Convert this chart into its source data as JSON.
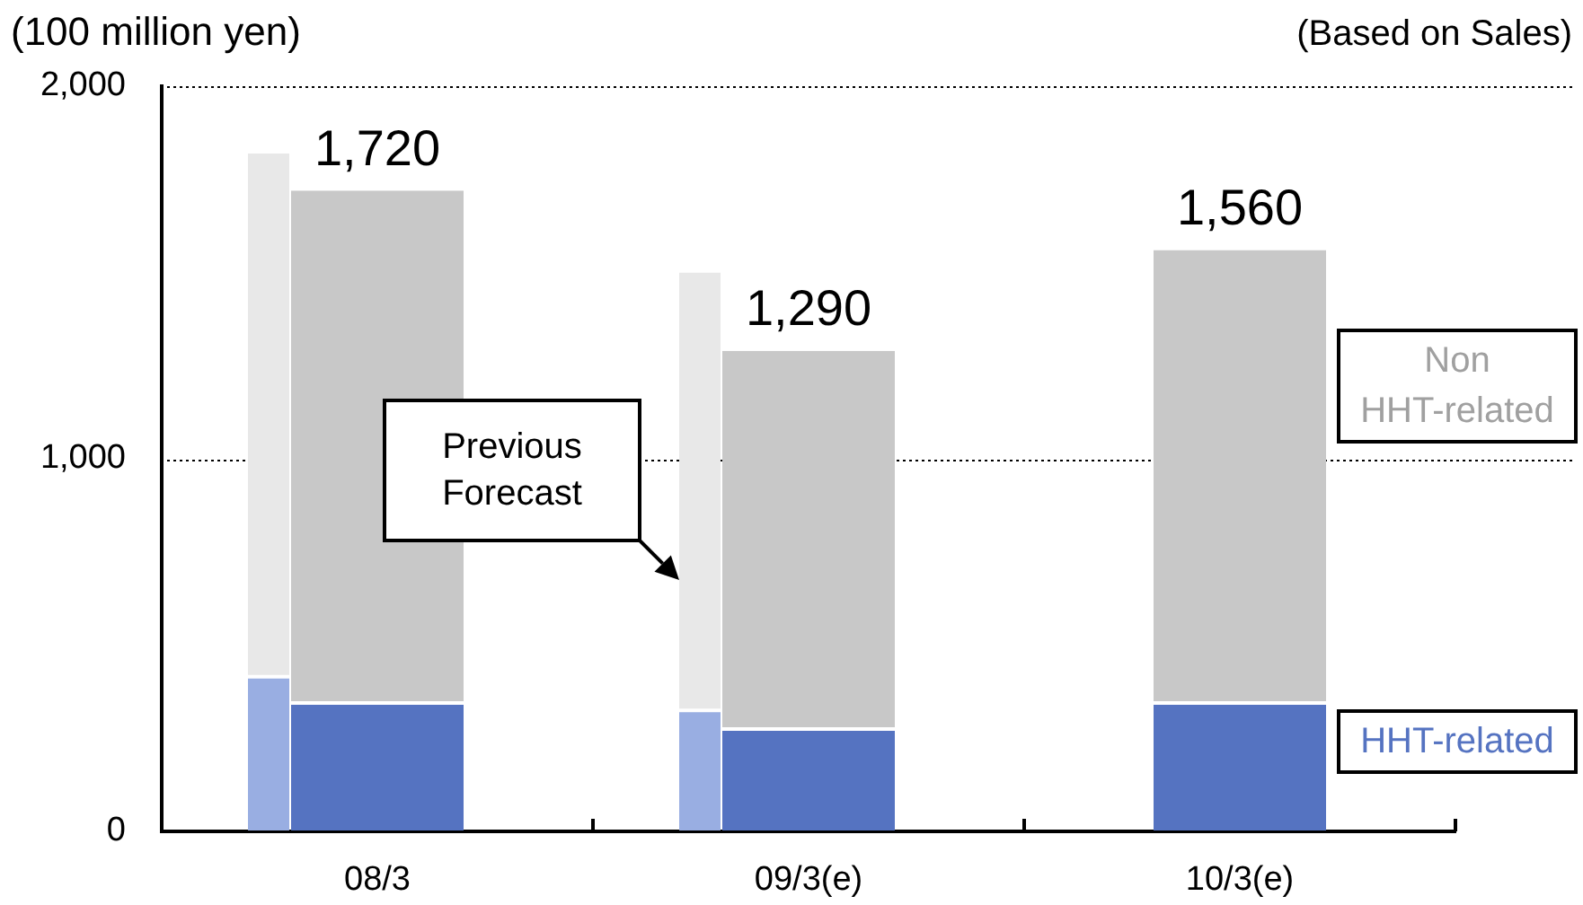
{
  "chart_data": {
    "type": "bar",
    "stacked": true,
    "ylabel": "(100 million yen)",
    "annotations": [
      "(Based on Sales)",
      "Previous Forecast"
    ],
    "categories": [
      null,
      "08/3",
      null,
      "09/3(e)",
      null,
      "10/3(e)"
    ],
    "series": [
      {
        "name": "HHT-related",
        "color": "#5573c1",
        "colors": [
          "#99aee2",
          "#5573c1",
          "#99aee2",
          "#5573c1",
          null,
          "#5573c1"
        ],
        "values": [
          410,
          340,
          320,
          270,
          null,
          340
        ]
      },
      {
        "name": "Non HHT-related",
        "color": "#c8c8c8",
        "colors": [
          "#e8e8e8",
          "#c8c8c8",
          "#e8e8e8",
          "#c8c8c8",
          null,
          "#c8c8c8"
        ],
        "values": [
          1410,
          1380,
          1180,
          1020,
          null,
          1220
        ]
      }
    ],
    "ylim": [
      0,
      2000
    ],
    "yticks": [
      0,
      {
        "value": 1000,
        "label": "1,000"
      },
      {
        "value": 2000,
        "label": "2,000"
      }
    ],
    "grid": "y",
    "totals": [
      null,
      "1,720",
      null,
      "1,290",
      null,
      "1,560"
    ]
  }
}
